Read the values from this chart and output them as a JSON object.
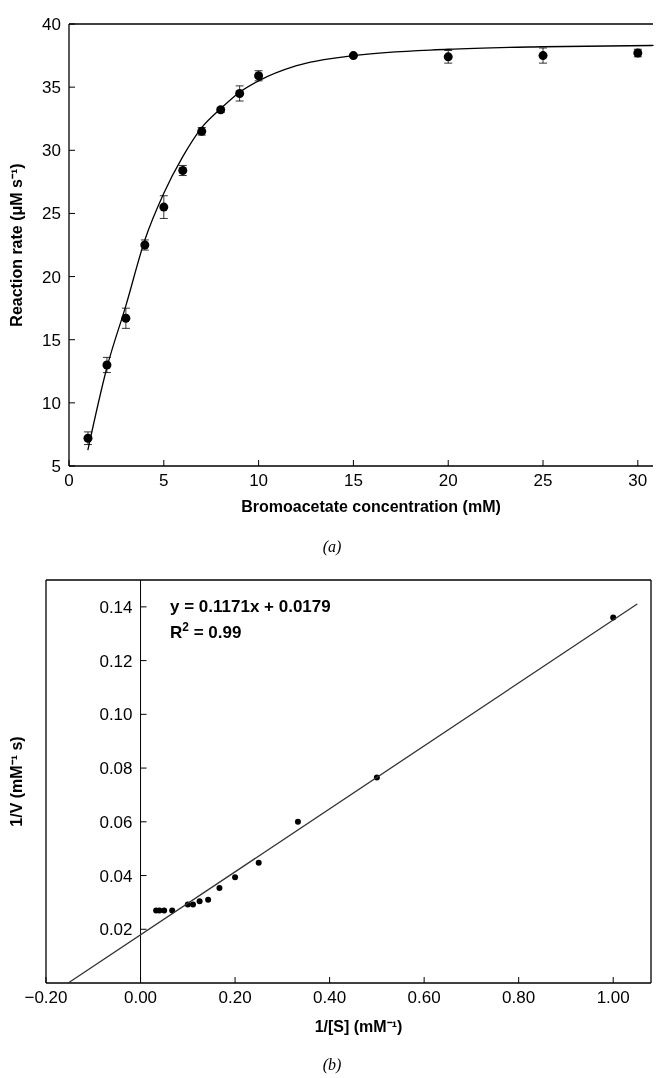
{
  "chart_data": [
    {
      "type": "scatter",
      "xlabel": "Bromoacetate concentration (mM)",
      "ylabel": "Reaction rate (μM s⁻¹)",
      "annotations": [
        "(a)"
      ],
      "x": [
        1,
        2,
        3,
        4,
        5,
        6,
        7,
        8,
        9,
        10,
        15,
        20,
        25,
        30
      ],
      "xlim": [
        0,
        30.8
      ],
      "xticks": [
        0,
        5,
        10,
        15,
        20,
        25,
        30
      ],
      "ylim": [
        5,
        40
      ],
      "yticks": [
        5,
        10,
        15,
        20,
        25,
        30,
        35,
        40
      ],
      "grid": false,
      "series": [
        {
          "marker": "circle",
          "color": "#000000",
          "values": [
            7.2,
            13.0,
            16.7,
            22.5,
            25.5,
            28.4,
            31.5,
            33.2,
            34.5,
            35.9,
            37.5,
            37.4,
            37.5,
            37.7
          ],
          "errors": [
            0.5,
            0.6,
            0.8,
            0.4,
            0.9,
            0.4,
            0.3,
            0.2,
            0.6,
            0.4,
            0.1,
            0.5,
            0.6,
            0.3
          ]
        },
        {
          "type": "line",
          "marker": "none",
          "color": "#000000",
          "x": [
            1,
            2,
            3,
            4,
            5,
            6,
            7,
            8,
            9,
            10,
            12,
            15,
            20,
            25,
            30.8
          ],
          "values": [
            6.3,
            12.8,
            17.7,
            22.9,
            26.6,
            29.5,
            31.8,
            33.3,
            34.6,
            35.5,
            36.7,
            37.5,
            38.0,
            38.2,
            38.3
          ]
        }
      ]
    },
    {
      "type": "scatter",
      "xlabel": "1/[S] (mM⁻¹)",
      "ylabel": "1/V (mM⁻¹ s)",
      "annotations": [
        "y = 0.1171x + 0.0179",
        "R$^{2}$ = 0.99",
        "(b)"
      ],
      "x": [
        1.0,
        0.5,
        0.333,
        0.25,
        0.2,
        0.167,
        0.143,
        0.125,
        0.111,
        0.1,
        0.067,
        0.05,
        0.04,
        0.033
      ],
      "xlim": [
        -0.2,
        1.08
      ],
      "xticks": [
        {
          "value": -0.2,
          "label": "−0.20"
        },
        {
          "value": 0,
          "label": "0.00"
        },
        {
          "value": 0.2,
          "label": "0.20"
        },
        {
          "value": 0.4,
          "label": "0.40"
        },
        {
          "value": 0.6,
          "label": "0.60"
        },
        {
          "value": 0.8,
          "label": "0.80"
        },
        {
          "value": 1.0,
          "label": "1.00"
        }
      ],
      "ylim": [
        0,
        0.15
      ],
      "yticks": [
        0.02,
        0.04,
        0.06,
        {
          "value": 0.08,
          "label": "0.08"
        },
        {
          "value": 0.1,
          "label": "0.10"
        },
        {
          "value": 0.12,
          "label": "0.12"
        },
        {
          "value": 0.14,
          "label": "0.14"
        }
      ],
      "grid": false,
      "series": [
        {
          "marker": "circle",
          "color": "#000000",
          "values": [
            0.136,
            0.0765,
            0.06,
            0.0448,
            0.0394,
            0.0354,
            0.031,
            0.0304,
            0.0292,
            0.0292,
            0.027,
            0.027,
            0.027,
            0.027
          ]
        },
        {
          "type": "line",
          "marker": "none",
          "color": "#333333",
          "x": [
            -0.153,
            1.05
          ],
          "values": [
            0,
            0.141
          ]
        }
      ]
    }
  ]
}
